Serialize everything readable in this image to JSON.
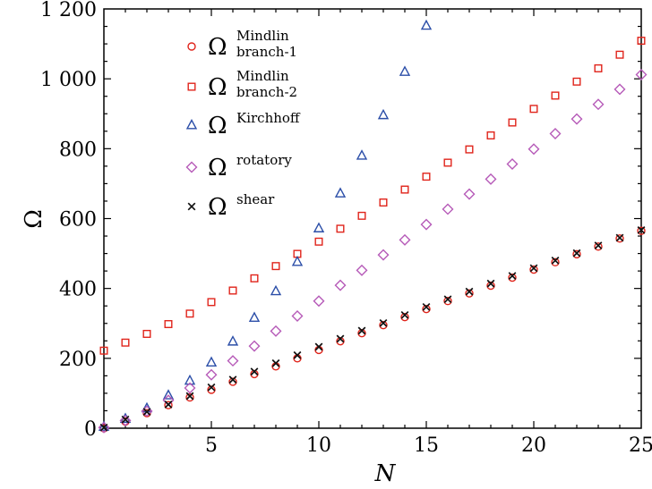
{
  "chart_data": {
    "type": "scatter",
    "xlabel": "N",
    "ylabel": "Ω",
    "xlim": [
      0,
      25
    ],
    "ylim": [
      0,
      1200
    ],
    "xticks": [
      5,
      10,
      15,
      20,
      25
    ],
    "yticks": [
      0,
      200,
      400,
      600,
      800,
      1000,
      1200
    ],
    "ytick_labels": [
      "0",
      "200",
      "400",
      "600",
      "800",
      "1 000",
      "1 200"
    ],
    "grid": false,
    "legend_position": "top-left",
    "series": [
      {
        "name": "Ω",
        "sup1": "Mindlin",
        "sup2": "branch-1",
        "marker": "circle",
        "color": "#e0241b",
        "x": [
          0,
          1,
          2,
          3,
          4,
          5,
          6,
          7,
          8,
          9,
          10,
          11,
          12,
          13,
          14,
          15,
          16,
          17,
          18,
          19,
          20,
          21,
          22,
          23,
          24,
          25
        ],
        "y": [
          0,
          19,
          43,
          66,
          88,
          110,
          133,
          155,
          177,
          200,
          224,
          249,
          272,
          295,
          318,
          341,
          364,
          386,
          408,
          431,
          454,
          475,
          498,
          520,
          543,
          565
        ]
      },
      {
        "name": "Ω",
        "sup1": "Mindlin",
        "sup2": "branch-2",
        "marker": "square",
        "color": "#e0241b",
        "x": [
          0,
          1,
          2,
          3,
          4,
          5,
          6,
          7,
          8,
          9,
          10,
          11,
          12,
          13,
          14,
          15,
          16,
          17,
          18,
          19,
          20,
          21,
          22,
          23,
          24,
          25
        ],
        "y": [
          222,
          245,
          270,
          298,
          328,
          361,
          394,
          429,
          464,
          499,
          534,
          571,
          608,
          646,
          683,
          720,
          760,
          798,
          838,
          875,
          914,
          952,
          992,
          1030,
          1069,
          1109
        ]
      },
      {
        "name": "Ω",
        "sup1": "Kirchhoff",
        "sup2": "",
        "marker": "triangle",
        "color": "#2b4ea8",
        "x": [
          0,
          1,
          2,
          3,
          4,
          5,
          6,
          7,
          8,
          9,
          10,
          11,
          12,
          13,
          14,
          15
        ],
        "y": [
          4,
          27,
          57,
          94,
          136,
          188,
          248,
          316,
          392,
          476,
          572,
          672,
          780,
          896,
          1020,
          1152
        ]
      },
      {
        "name": "Ω",
        "sup1": "rotatory",
        "sup2": "",
        "marker": "diamond",
        "color": "#b65ab8",
        "x": [
          0,
          1,
          2,
          3,
          4,
          5,
          6,
          7,
          8,
          9,
          10,
          11,
          12,
          13,
          14,
          15,
          16,
          17,
          18,
          19,
          20,
          21,
          22,
          23,
          24,
          25
        ],
        "y": [
          2,
          22,
          49,
          80,
          115,
          153,
          193,
          235,
          278,
          321,
          364,
          409,
          452,
          496,
          539,
          583,
          627,
          670,
          713,
          756,
          799,
          843,
          885,
          927,
          970,
          1012
        ]
      },
      {
        "name": "Ω",
        "sup1": "shear",
        "sup2": "",
        "marker": "cross",
        "color": "#111111",
        "x": [
          0,
          1,
          2,
          3,
          4,
          5,
          6,
          7,
          8,
          9,
          10,
          11,
          12,
          13,
          14,
          15,
          16,
          17,
          18,
          19,
          20,
          21,
          22,
          23,
          24,
          25
        ],
        "y": [
          2,
          25,
          47,
          68,
          92,
          117,
          139,
          162,
          186,
          209,
          233,
          256,
          279,
          301,
          324,
          347,
          369,
          391,
          414,
          436,
          458,
          480,
          501,
          523,
          545,
          567
        ]
      }
    ]
  }
}
